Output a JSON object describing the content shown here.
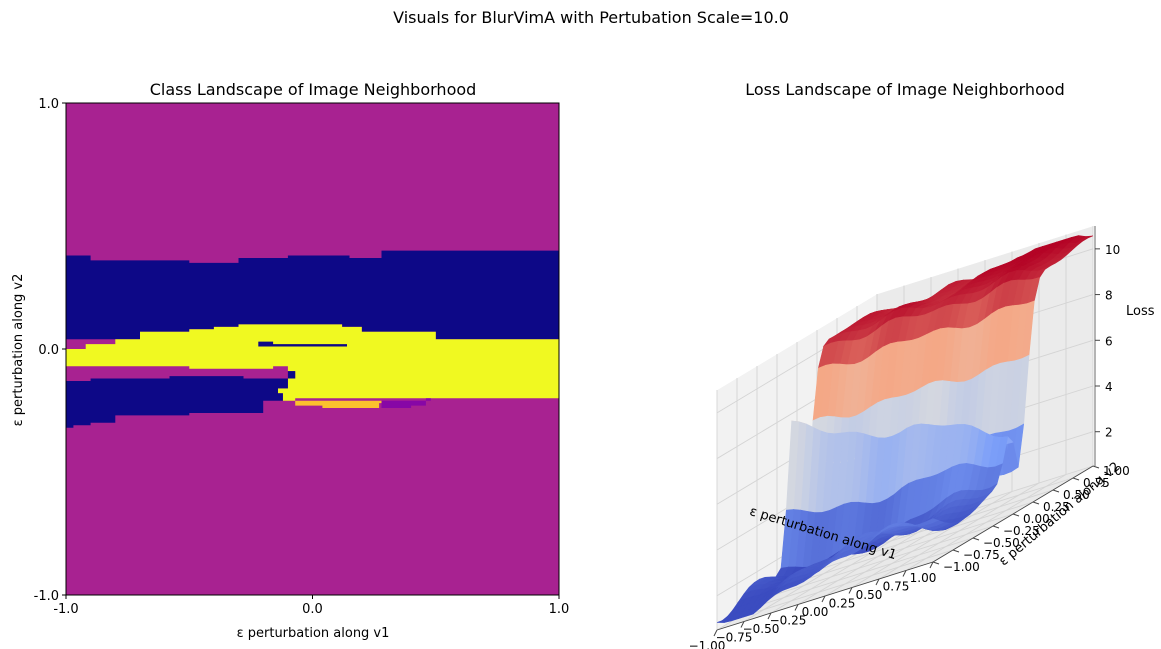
{
  "figure": {
    "suptitle": "Visuals for BlurVimA with Pertubation Scale=10.0"
  },
  "chart_data": [
    {
      "type": "heatmap",
      "title": "Class Landscape of Image Neighborhood",
      "xlabel": "ε perturbation along v1",
      "ylabel": "ε perturbation along v2",
      "xlim": [
        -1.0,
        1.0
      ],
      "ylim": [
        -1.0,
        1.0
      ],
      "xticks": [
        "-1.0",
        "0.0",
        "1.0"
      ],
      "yticks": [
        "-1.0",
        "0.0",
        "1.0"
      ],
      "grid": false,
      "legend": "none",
      "class_colors": {
        "magenta_class": "#a82291",
        "navy_class": "#0d0887",
        "yellow_class": "#f0f921",
        "orange_class": "#fbc22e",
        "purple_class": "#8707a6"
      },
      "regions": [
        {
          "class": "navy_class",
          "points": [
            [
              -1.0,
              0.38
            ],
            [
              -0.9,
              0.38
            ],
            [
              -0.9,
              0.36
            ],
            [
              -0.5,
              0.36
            ],
            [
              -0.5,
              0.35
            ],
            [
              -0.3,
              0.35
            ],
            [
              -0.3,
              0.37
            ],
            [
              -0.1,
              0.37
            ],
            [
              -0.1,
              0.38
            ],
            [
              0.15,
              0.38
            ],
            [
              0.15,
              0.37
            ],
            [
              0.28,
              0.37
            ],
            [
              0.28,
              0.4
            ],
            [
              1.0,
              0.4
            ],
            [
              1.0,
              0.04
            ],
            [
              0.5,
              0.04
            ],
            [
              0.5,
              0.07
            ],
            [
              0.2,
              0.07
            ],
            [
              0.2,
              0.09
            ],
            [
              0.12,
              0.09
            ],
            [
              0.12,
              0.1
            ],
            [
              -0.3,
              0.1
            ],
            [
              -0.3,
              0.09
            ],
            [
              -0.4,
              0.09
            ],
            [
              -0.4,
              0.08
            ],
            [
              -0.5,
              0.08
            ],
            [
              -0.5,
              0.07
            ],
            [
              -0.7,
              0.07
            ],
            [
              -0.7,
              0.04
            ],
            [
              -1.0,
              0.04
            ]
          ]
        },
        {
          "class": "yellow_class",
          "points": [
            [
              -0.8,
              0.04
            ],
            [
              -0.7,
              0.04
            ],
            [
              -0.7,
              0.07
            ],
            [
              -0.5,
              0.07
            ],
            [
              -0.5,
              0.08
            ],
            [
              -0.4,
              0.08
            ],
            [
              -0.4,
              0.09
            ],
            [
              -0.3,
              0.09
            ],
            [
              -0.3,
              0.1
            ],
            [
              0.12,
              0.1
            ],
            [
              0.12,
              0.09
            ],
            [
              0.2,
              0.09
            ],
            [
              0.2,
              0.07
            ],
            [
              0.5,
              0.07
            ],
            [
              0.5,
              0.04
            ],
            [
              1.0,
              0.04
            ],
            [
              1.0,
              -0.2
            ],
            [
              -0.07,
              -0.2
            ],
            [
              -0.07,
              -0.21
            ],
            [
              -0.12,
              -0.21
            ],
            [
              -0.12,
              -0.18
            ],
            [
              -0.14,
              -0.18
            ],
            [
              -0.14,
              -0.16
            ],
            [
              -0.1,
              -0.16
            ],
            [
              -0.1,
              -0.12
            ],
            [
              -0.07,
              -0.12
            ],
            [
              -0.07,
              -0.09
            ],
            [
              -0.1,
              -0.09
            ],
            [
              -0.1,
              -0.07
            ],
            [
              -0.16,
              -0.07
            ],
            [
              -0.16,
              -0.08
            ],
            [
              -0.5,
              -0.08
            ],
            [
              -0.5,
              -0.07
            ],
            [
              -1.0,
              -0.07
            ],
            [
              -1.0,
              0.0
            ],
            [
              -0.92,
              0.0
            ],
            [
              -0.92,
              0.02
            ],
            [
              -0.8,
              0.02
            ]
          ]
        },
        {
          "class": "navy_class",
          "points": [
            [
              -0.22,
              0.03
            ],
            [
              -0.16,
              0.03
            ],
            [
              -0.16,
              0.02
            ],
            [
              0.14,
              0.02
            ],
            [
              0.14,
              0.01
            ],
            [
              -0.22,
              0.01
            ]
          ]
        },
        {
          "class": "navy_class",
          "points": [
            [
              -1.0,
              -0.13
            ],
            [
              -0.9,
              -0.13
            ],
            [
              -0.9,
              -0.12
            ],
            [
              -0.58,
              -0.12
            ],
            [
              -0.58,
              -0.11
            ],
            [
              -0.28,
              -0.11
            ],
            [
              -0.28,
              -0.12
            ],
            [
              -0.07,
              -0.12
            ],
            [
              -0.07,
              -0.09
            ],
            [
              -0.1,
              -0.09
            ],
            [
              -0.1,
              -0.12
            ],
            [
              -0.1,
              -0.16
            ],
            [
              -0.14,
              -0.16
            ],
            [
              -0.14,
              -0.18
            ],
            [
              -0.12,
              -0.18
            ],
            [
              -0.12,
              -0.21
            ],
            [
              -0.2,
              -0.21
            ],
            [
              -0.2,
              -0.26
            ],
            [
              -0.5,
              -0.26
            ],
            [
              -0.5,
              -0.27
            ],
            [
              -0.8,
              -0.27
            ],
            [
              -0.8,
              -0.3
            ],
            [
              -0.9,
              -0.3
            ],
            [
              -0.9,
              -0.31
            ],
            [
              -0.97,
              -0.31
            ],
            [
              -0.97,
              -0.32
            ],
            [
              -1.0,
              -0.32
            ]
          ]
        },
        {
          "class": "orange_class",
          "points": [
            [
              -0.07,
              -0.21
            ],
            [
              0.28,
              -0.21
            ],
            [
              0.28,
              -0.22
            ],
            [
              0.27,
              -0.22
            ],
            [
              0.27,
              -0.24
            ],
            [
              0.04,
              -0.24
            ],
            [
              0.04,
              -0.23
            ],
            [
              -0.07,
              -0.23
            ]
          ]
        },
        {
          "class": "purple_class",
          "points": [
            [
              0.28,
              -0.21
            ],
            [
              0.48,
              -0.21
            ],
            [
              0.48,
              -0.2
            ],
            [
              0.46,
              -0.2
            ],
            [
              0.46,
              -0.23
            ],
            [
              0.4,
              -0.23
            ],
            [
              0.4,
              -0.24
            ],
            [
              0.28,
              -0.24
            ]
          ]
        }
      ]
    },
    {
      "type": "surface3d",
      "title": "Loss Landscape of Image Neighborhood",
      "xlabel": "ε perturbation along v1",
      "ylabel": "ε perturbation along v2",
      "zlabel": "Loss",
      "xlim": [
        -1.0,
        1.0
      ],
      "ylim": [
        -1.0,
        1.0
      ],
      "zlim": [
        0.5,
        11
      ],
      "xticks": [
        "−1.00",
        "−0.75",
        "−0.50",
        "−0.25",
        "0.00",
        "0.25",
        "0.50",
        "0.75",
        "1.00"
      ],
      "yticks": [
        "−1.00",
        "−0.75",
        "−0.50",
        "−0.25",
        "0.00",
        "0.25",
        "0.50",
        "0.75",
        "1.00"
      ],
      "zticks": [
        "2",
        "4",
        "6",
        "8",
        "10"
      ],
      "colormap": "coolwarm",
      "grid": true
    }
  ]
}
